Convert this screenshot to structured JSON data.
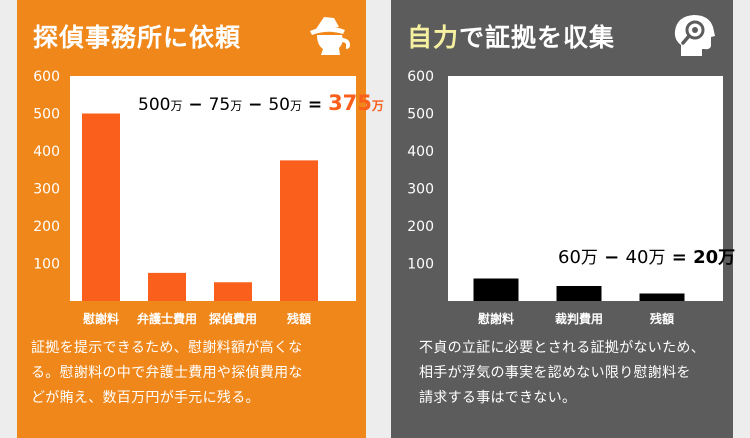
{
  "panels": [
    {
      "title_main": "探偵事務所に依頼",
      "title_highlight": "",
      "icon": "detective-silhouette-icon",
      "description": [
        "証拠を提示できるため、慰謝料額が高くな",
        "る。慰謝料の中で弁護士費用や探偵費用な",
        "どが賄え、数百万円が手元に残る。"
      ],
      "equation": {
        "lhs": [
          {
            "num": "500",
            "unit": "万"
          },
          {
            "op": " − "
          },
          {
            "num": "75",
            "unit": "万"
          },
          {
            "op": " − "
          },
          {
            "num": "50",
            "unit": "万"
          },
          {
            "op": " = "
          }
        ],
        "result": {
          "num": "375",
          "unit": "万"
        }
      }
    },
    {
      "title_main": "で証拠を収集",
      "title_highlight": "自力",
      "icon": "magnifier-head-icon",
      "description": [
        "不貞の立証に必要とされる証拠がないため、",
        "相手が浮気の事実を認めない限り慰謝料を",
        "請求する事はできない。"
      ],
      "equation": {
        "lhs": [
          {
            "num": "60",
            "unit": "万"
          },
          {
            "op": " − "
          },
          {
            "num": "40",
            "unit": "万"
          },
          {
            "op": " = "
          }
        ],
        "result": {
          "num": "20",
          "unit": "万"
        }
      }
    }
  ],
  "colors": {
    "orange_panel": "#f0871a",
    "gray_panel": "#5c5c5c",
    "orange_bar": "#fa5f1c",
    "black_bar": "#000000",
    "title_highlight": "#f6f1a0"
  },
  "chart_data": [
    {
      "type": "bar",
      "categories": [
        "慰謝料",
        "弁護士費用",
        "探偵費用",
        "残額"
      ],
      "values": [
        500,
        75,
        50,
        375
      ],
      "ylim": [
        0,
        600
      ],
      "yticks": [
        100,
        200,
        300,
        400,
        500,
        600
      ],
      "grid": false,
      "bar_color": "#fa5f1c",
      "title": "",
      "xlabel": "",
      "ylabel": ""
    },
    {
      "type": "bar",
      "categories": [
        "慰謝料",
        "裁判費用",
        "残額"
      ],
      "values": [
        60,
        40,
        20
      ],
      "ylim": [
        0,
        600
      ],
      "yticks": [
        100,
        200,
        300,
        400,
        500,
        600
      ],
      "grid": false,
      "bar_color": "#000000",
      "title": "",
      "xlabel": "",
      "ylabel": ""
    }
  ]
}
